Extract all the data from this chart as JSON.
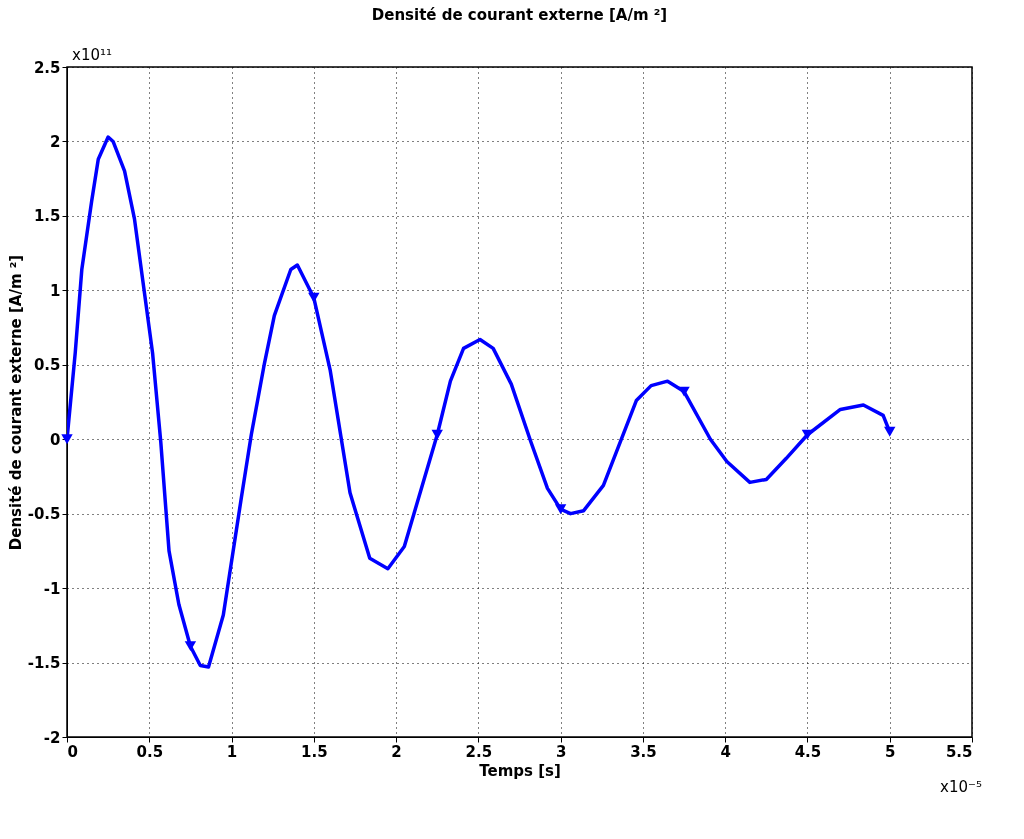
{
  "chart_data": {
    "type": "line",
    "title": "Densité de courant externe [A/m ²]",
    "xlabel": "Temps [s]",
    "ylabel": "Densité de courant externe [A/m ²]",
    "annotations": [
      "x10¹¹",
      "x10⁻⁵"
    ],
    "xlim": [
      0,
      5.5
    ],
    "xticks": [
      0,
      0.5,
      1,
      1.5,
      2,
      2.5,
      3,
      3.5,
      4,
      4.5,
      5,
      5.5
    ],
    "ylim": [
      -2,
      2.5
    ],
    "yticks": [
      -2,
      -1.5,
      -1,
      -0.5,
      0,
      0.5,
      1,
      1.5,
      2,
      2.5
    ],
    "grid": true,
    "series": [
      {
        "color": "#0000ff",
        "marker": "none",
        "x": [
          0,
          0.05,
          0.09,
          0.15,
          0.19,
          0.25,
          0.28,
          0.35,
          0.41,
          0.52,
          0.57,
          0.62,
          0.68,
          0.75,
          0.81,
          0.86,
          0.95,
          1.06,
          1.12,
          1.2,
          1.26,
          1.36,
          1.4,
          1.5,
          1.6,
          1.72,
          1.84,
          1.95,
          2.05,
          2.25,
          2.33,
          2.41,
          2.51,
          2.59,
          2.7,
          2.82,
          2.92,
          3.0,
          3.06,
          3.14,
          3.26,
          3.46,
          3.55,
          3.65,
          3.75,
          3.91,
          4.01,
          4.15,
          4.25,
          4.37,
          4.5,
          4.7,
          4.84,
          4.96,
          5.0
        ],
        "values": [
          0,
          0.58,
          1.14,
          1.6,
          1.88,
          2.03,
          2.0,
          1.8,
          1.48,
          0.58,
          -0.02,
          -0.75,
          -1.11,
          -1.39,
          -1.52,
          -1.53,
          -1.18,
          -0.39,
          0.03,
          0.51,
          0.83,
          1.14,
          1.17,
          0.95,
          0.46,
          -0.36,
          -0.8,
          -0.87,
          -0.72,
          0.03,
          0.39,
          0.61,
          0.67,
          0.61,
          0.37,
          -0.02,
          -0.33,
          -0.47,
          -0.5,
          -0.48,
          -0.31,
          0.26,
          0.36,
          0.39,
          0.32,
          0,
          -0.15,
          -0.29,
          -0.27,
          -0.13,
          0.03,
          0.2,
          0.23,
          0.16,
          0.05
        ]
      },
      {
        "type": "scatter",
        "color": "#0000ff",
        "marker": "triangle",
        "x": [
          0,
          0.75,
          1.5,
          2.25,
          3.0,
          3.75,
          4.5,
          5.0
        ],
        "values": [
          0,
          -1.39,
          0.95,
          0.03,
          -0.47,
          0.32,
          0.03,
          0.05
        ]
      }
    ]
  }
}
